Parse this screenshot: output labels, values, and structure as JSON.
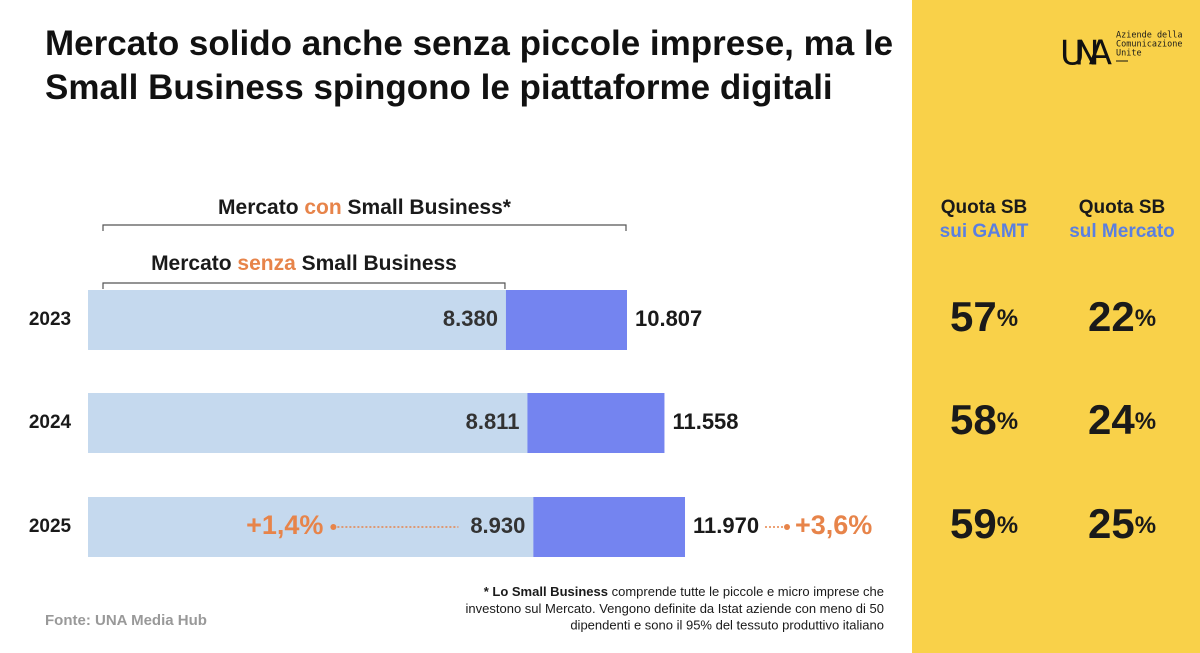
{
  "chart_data": {
    "type": "overlap-bar",
    "title": "Mercato solido anche senza piccole imprese, ma le Small Business spingono le piattaforme digitali",
    "categories": [
      "2023",
      "2024",
      "2025"
    ],
    "series": [
      {
        "name_parts": [
          "Mercato ",
          "con",
          " Small Business*"
        ],
        "color": "#7484f0",
        "values": [
          10807,
          11558,
          11970
        ],
        "value_labels": [
          "10.807",
          "11.558",
          "11.970"
        ]
      },
      {
        "name_parts": [
          "Mercato ",
          "senza",
          " Small Business"
        ],
        "color": "#c5d9ee",
        "values": [
          8380,
          8811,
          8930
        ],
        "value_labels": [
          "8.380",
          "8.811",
          "8.930"
        ]
      }
    ],
    "highlight_color": "#e7844a",
    "xlim": [
      0,
      16000
    ],
    "annotations": [
      {
        "text": "+1,4%",
        "series": 1,
        "category": 2
      },
      {
        "text": "+3,6%",
        "series": 0,
        "category": 2
      }
    ],
    "share_table": {
      "unit": "%",
      "columns": [
        {
          "title": "Quota SB",
          "subtitle": "sui GAMT",
          "values": [
            57,
            58,
            59
          ]
        },
        {
          "title": "Quota SB",
          "subtitle": "sul Mercato",
          "values": [
            22,
            24,
            25
          ]
        }
      ]
    },
    "logo": {
      "mark": "UNA",
      "lines": [
        "Aziende della",
        "Comunicazione",
        "Unite"
      ]
    },
    "footnote": {
      "bold": "* Lo Small Business",
      "lines": [
        " comprende tutte le piccole e micro imprese che",
        "investono sul Mercato. Vengono definite da Istat aziende con meno di 50",
        "dipendenti e sono il 95% del tessuto produttivo italiano"
      ]
    },
    "source": "Fonte: UNA Media Hub"
  }
}
